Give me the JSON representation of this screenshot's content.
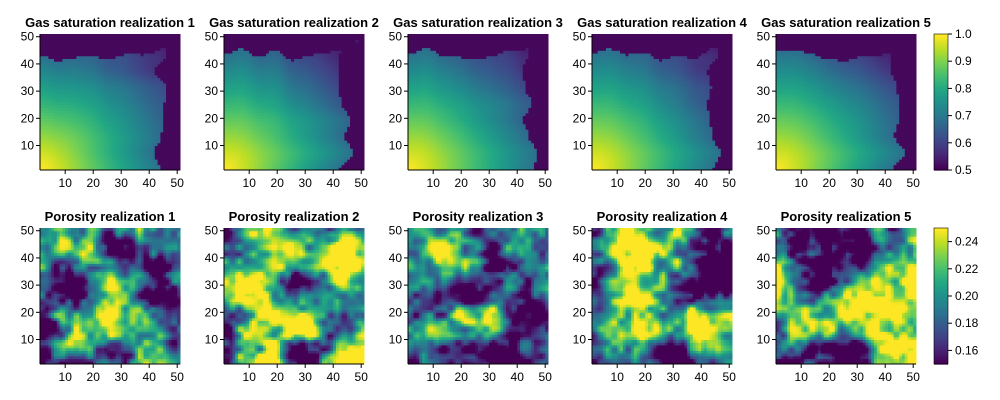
{
  "chart_data": [
    {
      "type": "heatmap",
      "title": "Gas saturation realization 1",
      "field": "gas",
      "seed": 11,
      "xticks": [
        10,
        20,
        30,
        40,
        50
      ],
      "yticks": [
        10,
        20,
        30,
        40,
        50
      ],
      "xlim": [
        1,
        51
      ],
      "ylim": [
        1,
        51
      ],
      "clim": [
        0.5,
        1.0
      ]
    },
    {
      "type": "heatmap",
      "title": "Gas saturation realization 2",
      "field": "gas",
      "seed": 12,
      "xticks": [
        10,
        20,
        30,
        40,
        50
      ],
      "yticks": [
        10,
        20,
        30,
        40,
        50
      ],
      "xlim": [
        1,
        51
      ],
      "ylim": [
        1,
        51
      ],
      "clim": [
        0.5,
        1.0
      ]
    },
    {
      "type": "heatmap",
      "title": "Gas saturation realization 3",
      "field": "gas",
      "seed": 13,
      "xticks": [
        10,
        20,
        30,
        40,
        50
      ],
      "yticks": [
        10,
        20,
        30,
        40,
        50
      ],
      "xlim": [
        1,
        51
      ],
      "ylim": [
        1,
        51
      ],
      "clim": [
        0.5,
        1.0
      ]
    },
    {
      "type": "heatmap",
      "title": "Gas saturation realization 4",
      "field": "gas",
      "seed": 14,
      "xticks": [
        10,
        20,
        30,
        40,
        50
      ],
      "yticks": [
        10,
        20,
        30,
        40,
        50
      ],
      "xlim": [
        1,
        51
      ],
      "ylim": [
        1,
        51
      ],
      "clim": [
        0.5,
        1.0
      ]
    },
    {
      "type": "heatmap",
      "title": "Gas saturation realization 5",
      "field": "gas",
      "seed": 15,
      "xticks": [
        10,
        20,
        30,
        40,
        50
      ],
      "yticks": [
        10,
        20,
        30,
        40,
        50
      ],
      "xlim": [
        1,
        51
      ],
      "ylim": [
        1,
        51
      ],
      "clim": [
        0.5,
        1.0
      ]
    },
    {
      "type": "heatmap",
      "title": "Porosity realization 1",
      "field": "porosity",
      "seed": 21,
      "xticks": [
        10,
        20,
        30,
        40,
        50
      ],
      "yticks": [
        10,
        20,
        30,
        40,
        50
      ],
      "xlim": [
        1,
        51
      ],
      "ylim": [
        1,
        51
      ],
      "clim": [
        0.15,
        0.25
      ]
    },
    {
      "type": "heatmap",
      "title": "Porosity realization 2",
      "field": "porosity",
      "seed": 22,
      "xticks": [
        10,
        20,
        30,
        40,
        50
      ],
      "yticks": [
        10,
        20,
        30,
        40,
        50
      ],
      "xlim": [
        1,
        51
      ],
      "ylim": [
        1,
        51
      ],
      "clim": [
        0.15,
        0.25
      ]
    },
    {
      "type": "heatmap",
      "title": "Porosity realization 3",
      "field": "porosity",
      "seed": 23,
      "xticks": [
        10,
        20,
        30,
        40,
        50
      ],
      "yticks": [
        10,
        20,
        30,
        40,
        50
      ],
      "xlim": [
        1,
        51
      ],
      "ylim": [
        1,
        51
      ],
      "clim": [
        0.15,
        0.25
      ]
    },
    {
      "type": "heatmap",
      "title": "Porosity realization 4",
      "field": "porosity",
      "seed": 24,
      "xticks": [
        10,
        20,
        30,
        40,
        50
      ],
      "yticks": [
        10,
        20,
        30,
        40,
        50
      ],
      "xlim": [
        1,
        51
      ],
      "ylim": [
        1,
        51
      ],
      "clim": [
        0.15,
        0.25
      ]
    },
    {
      "type": "heatmap",
      "title": "Porosity realization 5",
      "field": "porosity",
      "seed": 25,
      "xticks": [
        10,
        20,
        30,
        40,
        50
      ],
      "yticks": [
        10,
        20,
        30,
        40,
        50
      ],
      "xlim": [
        1,
        51
      ],
      "ylim": [
        1,
        51
      ],
      "clim": [
        0.15,
        0.25
      ]
    }
  ],
  "colorbars": [
    {
      "ticks": [
        "0.5",
        "0.6",
        "0.7",
        "0.8",
        "0.9",
        "1.0"
      ],
      "values": [
        0.5,
        0.6,
        0.7,
        0.8,
        0.9,
        1.0
      ],
      "range": [
        0.5,
        1.0
      ]
    },
    {
      "ticks": [
        "0.16",
        "0.18",
        "0.20",
        "0.22",
        "0.24"
      ],
      "values": [
        0.16,
        0.18,
        0.2,
        0.22,
        0.24
      ],
      "range": [
        0.15,
        0.25
      ]
    }
  ],
  "colormap": "viridis"
}
